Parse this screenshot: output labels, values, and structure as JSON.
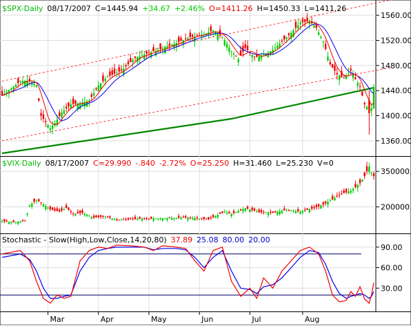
{
  "colors": {
    "up": "#00cc00",
    "down": "#ee0000",
    "ma_fast": "#ee0000",
    "ma_mid": "#0000ee",
    "ma_slow": "#008800",
    "channel": "#ff3333",
    "ref_line": "#000066",
    "title_green": "#00bb00",
    "label_black": "#000000",
    "label_red": "#ee0000",
    "label_blue": "#0000cc",
    "grid": "#dddddd"
  },
  "chart_data": [
    {
      "type": "candlestick",
      "title": "$SPX-Daily",
      "info": {
        "date": "08/17/2007",
        "close": "C=1445.94",
        "change": "+34.67",
        "pct": "+2.46%",
        "open": "O=1411.26",
        "high": "H=1450.33",
        "low": "L=1411.26"
      },
      "ylim": [
        1340,
        1580
      ],
      "yticks": [
        "1560.00",
        "1520.00",
        "1480.00",
        "1440.00",
        "1400.00",
        "1360.00"
      ],
      "ytick_values": [
        1560,
        1520,
        1480,
        1440,
        1400,
        1360
      ],
      "anchors": [
        [
          0,
          1432
        ],
        [
          8,
          1455
        ],
        [
          12,
          1456
        ],
        [
          15,
          1448
        ],
        [
          17,
          1400
        ],
        [
          21,
          1380
        ],
        [
          23,
          1388
        ],
        [
          26,
          1405
        ],
        [
          30,
          1418
        ],
        [
          34,
          1420
        ],
        [
          38,
          1424
        ],
        [
          42,
          1448
        ],
        [
          46,
          1462
        ],
        [
          52,
          1472
        ],
        [
          58,
          1492
        ],
        [
          64,
          1500
        ],
        [
          70,
          1507
        ],
        [
          76,
          1516
        ],
        [
          82,
          1525
        ],
        [
          88,
          1530
        ],
        [
          92,
          1536
        ],
        [
          96,
          1526
        ],
        [
          100,
          1503
        ],
        [
          103,
          1490
        ],
        [
          106,
          1508
        ],
        [
          110,
          1493
        ],
        [
          114,
          1497
        ],
        [
          118,
          1505
        ],
        [
          122,
          1518
        ],
        [
          126,
          1532
        ],
        [
          130,
          1548
        ],
        [
          134,
          1551
        ],
        [
          137,
          1540
        ],
        [
          140,
          1518
        ],
        [
          143,
          1482
        ],
        [
          146,
          1466
        ],
        [
          149,
          1460
        ],
        [
          152,
          1472
        ],
        [
          154,
          1458
        ],
        [
          156,
          1446
        ],
        [
          158,
          1418
        ],
        [
          160,
          1410
        ],
        [
          161,
          1412
        ],
        [
          162,
          1446
        ]
      ],
      "channel_upper": [
        [
          0,
          1455
        ],
        [
          170,
          1585
        ]
      ],
      "channel_lower": [
        [
          0,
          1360
        ],
        [
          170,
          1477
        ]
      ],
      "special_bars": [
        {
          "i": 160,
          "o": 1425,
          "c": 1404,
          "h": 1440,
          "l": 1370
        },
        {
          "i": 162,
          "o": 1411.26,
          "c": 1445.94,
          "h": 1450.33,
          "l": 1411.26
        }
      ]
    },
    {
      "type": "candlestick",
      "title": "$VIX-Daily",
      "info": {
        "date": "08/17/2007",
        "close": "C=29.990",
        "change": "-.840",
        "pct": "-2.72%",
        "open": "O=25.250",
        "high": "H=31.460",
        "low": "L=25.230",
        "volume": "V=0"
      },
      "ylim": [
        100000,
        400000
      ],
      "yticks": [
        "350000.0",
        "200000.0"
      ],
      "ytick_values": [
        350000,
        200000
      ],
      "anchors": [
        [
          0,
          140000
        ],
        [
          5,
          135000
        ],
        [
          10,
          140000
        ],
        [
          12,
          205000
        ],
        [
          15,
          230000
        ],
        [
          18,
          210000
        ],
        [
          21,
          190000
        ],
        [
          25,
          180000
        ],
        [
          28,
          195000
        ],
        [
          31,
          170000
        ],
        [
          35,
          175000
        ],
        [
          40,
          155000
        ],
        [
          45,
          160000
        ],
        [
          50,
          145000
        ],
        [
          60,
          150000
        ],
        [
          70,
          152000
        ],
        [
          80,
          155000
        ],
        [
          90,
          148000
        ],
        [
          97,
          180000
        ],
        [
          100,
          170000
        ],
        [
          106,
          195000
        ],
        [
          112,
          178000
        ],
        [
          118,
          175000
        ],
        [
          124,
          188000
        ],
        [
          130,
          180000
        ],
        [
          136,
          195000
        ],
        [
          140,
          210000
        ],
        [
          144,
          232000
        ],
        [
          148,
          255000
        ],
        [
          152,
          268000
        ],
        [
          156,
          300000
        ],
        [
          158,
          330000
        ],
        [
          160,
          370000
        ],
        [
          161,
          345000
        ],
        [
          162,
          330000
        ]
      ]
    },
    {
      "type": "line",
      "title": "Stochastic - Slow(High,Low,Close,14,20,80)",
      "readout": {
        "k": "37.89",
        "d": "25.08",
        "upper": "80.00",
        "lower": "20.00"
      },
      "ylim": [
        0,
        105
      ],
      "yticks": [
        "90.00",
        "60.00",
        "30.00"
      ],
      "ytick_values": [
        90,
        60,
        30
      ],
      "ref_levels": [
        80,
        20
      ],
      "k_anchors": [
        [
          0,
          80
        ],
        [
          8,
          85
        ],
        [
          12,
          70
        ],
        [
          15,
          40
        ],
        [
          18,
          15
        ],
        [
          21,
          8
        ],
        [
          24,
          20
        ],
        [
          27,
          15
        ],
        [
          30,
          18
        ],
        [
          34,
          70
        ],
        [
          38,
          85
        ],
        [
          42,
          90
        ],
        [
          46,
          88
        ],
        [
          50,
          93
        ],
        [
          56,
          92
        ],
        [
          62,
          90
        ],
        [
          66,
          85
        ],
        [
          70,
          92
        ],
        [
          76,
          90
        ],
        [
          80,
          88
        ],
        [
          84,
          70
        ],
        [
          88,
          55
        ],
        [
          92,
          85
        ],
        [
          96,
          90
        ],
        [
          100,
          40
        ],
        [
          104,
          18
        ],
        [
          108,
          30
        ],
        [
          111,
          15
        ],
        [
          114,
          45
        ],
        [
          118,
          30
        ],
        [
          122,
          55
        ],
        [
          126,
          70
        ],
        [
          130,
          85
        ],
        [
          134,
          90
        ],
        [
          138,
          80
        ],
        [
          141,
          55
        ],
        [
          144,
          20
        ],
        [
          147,
          10
        ],
        [
          150,
          12
        ],
        [
          152,
          25
        ],
        [
          154,
          18
        ],
        [
          156,
          32
        ],
        [
          158,
          14
        ],
        [
          160,
          8
        ],
        [
          161,
          20
        ],
        [
          162,
          38
        ]
      ],
      "d_anchors": [
        [
          0,
          75
        ],
        [
          8,
          80
        ],
        [
          12,
          72
        ],
        [
          15,
          55
        ],
        [
          18,
          30
        ],
        [
          21,
          15
        ],
        [
          24,
          15
        ],
        [
          27,
          18
        ],
        [
          30,
          20
        ],
        [
          34,
          55
        ],
        [
          38,
          75
        ],
        [
          42,
          85
        ],
        [
          46,
          88
        ],
        [
          50,
          90
        ],
        [
          56,
          90
        ],
        [
          62,
          90
        ],
        [
          66,
          86
        ],
        [
          70,
          88
        ],
        [
          76,
          88
        ],
        [
          80,
          86
        ],
        [
          84,
          75
        ],
        [
          88,
          60
        ],
        [
          92,
          75
        ],
        [
          96,
          85
        ],
        [
          100,
          55
        ],
        [
          104,
          30
        ],
        [
          108,
          28
        ],
        [
          111,
          22
        ],
        [
          114,
          32
        ],
        [
          118,
          35
        ],
        [
          122,
          45
        ],
        [
          126,
          60
        ],
        [
          130,
          75
        ],
        [
          134,
          85
        ],
        [
          138,
          82
        ],
        [
          141,
          65
        ],
        [
          144,
          40
        ],
        [
          147,
          22
        ],
        [
          150,
          15
        ],
        [
          152,
          18
        ],
        [
          154,
          20
        ],
        [
          156,
          22
        ],
        [
          158,
          20
        ],
        [
          160,
          15
        ],
        [
          161,
          18
        ],
        [
          162,
          25
        ]
      ]
    }
  ],
  "x_axis": {
    "months": [
      {
        "label": "Mar",
        "i": 20
      },
      {
        "label": "Apr",
        "i": 42
      },
      {
        "label": "May",
        "i": 64
      },
      {
        "label": "Jun",
        "i": 86
      },
      {
        "label": "Jul",
        "i": 108
      },
      {
        "label": "Aug",
        "i": 131
      }
    ]
  }
}
